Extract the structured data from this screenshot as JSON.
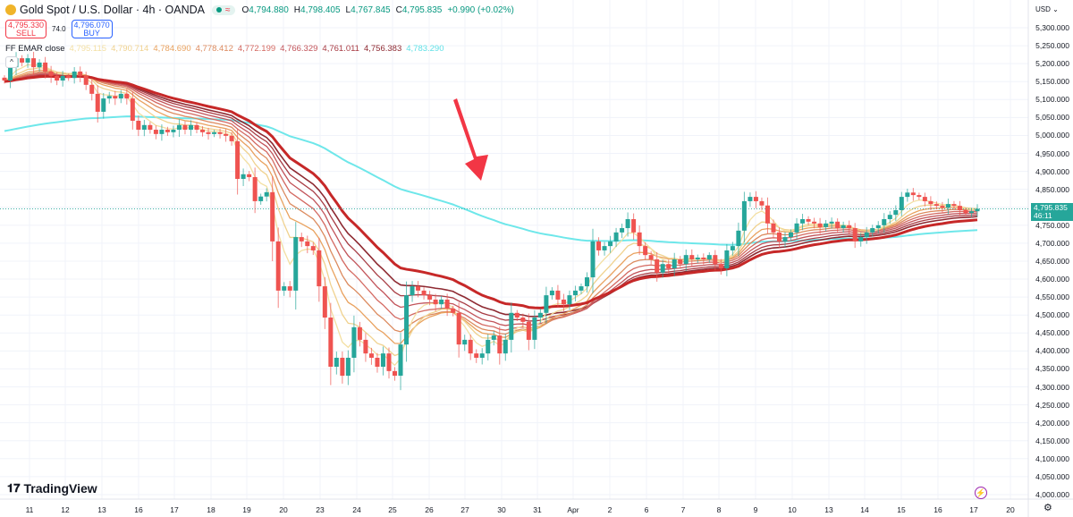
{
  "header": {
    "title": "Gold Spot / U.S. Dollar · 4h · OANDA",
    "status_icons": [
      "market-open-dot",
      "wave-icon"
    ],
    "ohlc": {
      "o_label": "O",
      "o": "4,794.880",
      "h_label": "H",
      "h": "4,798.405",
      "l_label": "L",
      "l": "4,767.845",
      "c_label": "C",
      "c": "4,795.835",
      "change": "+0.990 (+0.02%)"
    }
  },
  "trade": {
    "sell_price": "4,795.330",
    "sell_label": "SELL",
    "spread": "74.0",
    "buy_price": "4,796.070",
    "buy_label": "BUY"
  },
  "indicator": {
    "name": "FF EMAR close",
    "values": [
      "4,795.115",
      "4,790.714",
      "4,784.690",
      "4,778.412",
      "4,772.199",
      "4,766.329",
      "4,761.011",
      "4,756.383",
      "4,783.290"
    ],
    "colors": [
      "#f3dfa2",
      "#f0d28f",
      "#e9a25f",
      "#dc8a5e",
      "#d46a62",
      "#c2545a",
      "#a83c44",
      "#8e2a32",
      "#5fe0e6"
    ]
  },
  "colors": {
    "up": "#26a69a",
    "down": "#ef5350",
    "ribbon_base": "#c62828",
    "long_ema": "#6ee7ea",
    "arrow": "#f23645",
    "last_price": "#26a69a"
  },
  "price_axis": {
    "currency": "USD",
    "ticks": [
      "5,300.000",
      "5,250.000",
      "5,200.000",
      "5,150.000",
      "5,100.000",
      "5,050.000",
      "5,000.000",
      "4,950.000",
      "4,900.000",
      "4,850.000",
      "4,750.000",
      "4,700.000",
      "4,650.000",
      "4,600.000",
      "4,550.000",
      "4,500.000",
      "4,450.000",
      "4,400.000",
      "4,350.000",
      "4,300.000",
      "4,250.000",
      "4,200.000",
      "4,150.000",
      "4,100.000",
      "4,050.000",
      "4,000.000"
    ],
    "last_price": "4,795.835",
    "countdown": "46:11"
  },
  "date_axis": [
    "11",
    "12",
    "13",
    "16",
    "17",
    "18",
    "19",
    "20",
    "23",
    "24",
    "25",
    "26",
    "27",
    "30",
    "31",
    "Apr",
    "2",
    "6",
    "7",
    "8",
    "9",
    "10",
    "13",
    "14",
    "15",
    "16",
    "17",
    "20"
  ],
  "branding": {
    "logo": "TradingView"
  },
  "chart_data": {
    "type": "candlestick",
    "symbol": "XAUUSD",
    "timeframe": "4h",
    "ylim": [
      4000,
      5300
    ],
    "last_close": 4795.835,
    "closes": [
      5153,
      5190,
      5215,
      5203,
      5215,
      5190,
      5203,
      5178,
      5166,
      5153,
      5166,
      5160,
      5178,
      5166,
      5141,
      5116,
      5066,
      5103,
      5110,
      5103,
      5116,
      5103,
      5041,
      5016,
      5029,
      5016,
      5004,
      5016,
      5009,
      5016,
      5029,
      5016,
      5029,
      5016,
      5009,
      5004,
      5009,
      5004,
      4999,
      4984,
      4879,
      4892,
      4884,
      4817,
      4830,
      4842,
      4705,
      4568,
      4580,
      4568,
      4717,
      4705,
      4692,
      4680,
      4580,
      4493,
      4356,
      4381,
      4331,
      4381,
      4466,
      4431,
      4393,
      4381,
      4356,
      4393,
      4344,
      4331,
      4418,
      4555,
      4580,
      4568,
      4555,
      4543,
      4530,
      4543,
      4518,
      4506,
      4418,
      4431,
      4393,
      4381,
      4393,
      4431,
      4443,
      4393,
      4431,
      4506,
      4493,
      4481,
      4431,
      4493,
      4506,
      4555,
      4568,
      4543,
      4530,
      4555,
      4568,
      4580,
      4605,
      4705,
      4680,
      4692,
      4705,
      4730,
      4742,
      4767,
      4730,
      4692,
      4667,
      4655,
      4618,
      4642,
      4630,
      4655,
      4642,
      4667,
      4655,
      4660,
      4655,
      4667,
      4642,
      4630,
      4680,
      4692,
      4735,
      4817,
      4829,
      4817,
      4805,
      4755,
      4730,
      4705,
      4717,
      4730,
      4755,
      4767,
      4760,
      4755,
      4745,
      4755,
      4760,
      4742,
      4750,
      4742,
      4705,
      4717,
      4730,
      4742,
      4750,
      4767,
      4779,
      4792,
      4829,
      4841,
      4834,
      4829,
      4817,
      4809,
      4804,
      4799,
      4809,
      4804,
      4792,
      4784,
      4789,
      4795.835
    ]
  }
}
